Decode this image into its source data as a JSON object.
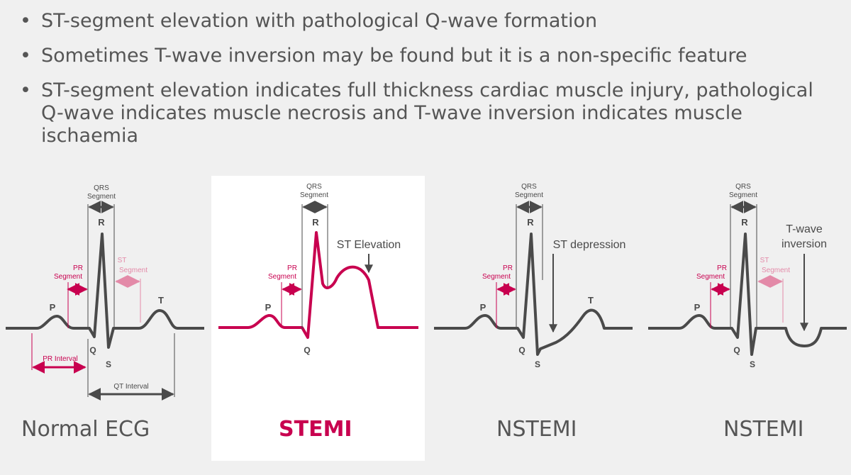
{
  "bullets": [
    "ST-segment elevation with pathological Q-wave formation",
    "Sometimes T-wave inversion may be found but it is a non-specific feature",
    "ST-segment elevation indicates full thickness cardiac muscle injury, pathological Q-wave indicates muscle necrosis and T-wave inversion indicates muscle ischaemia"
  ],
  "bullet_symbol": "•",
  "colors": {
    "trace": "#4a4a4a",
    "accent": "#c8004f",
    "st_light": "#e38aa8",
    "text": "#555555"
  },
  "panels": {
    "normal": {
      "caption": "Normal ECG",
      "qrs_line1": "QRS",
      "qrs_line2": "Segment",
      "r": "R",
      "q": "Q",
      "s": "S",
      "p": "P",
      "t": "T",
      "pr_seg_line1": "PR",
      "pr_seg_line2": "Segment",
      "st_seg_line1": "ST",
      "st_seg_line2": "Segment",
      "pr_interval": "PR Interval",
      "qt_interval": "QT Interval"
    },
    "stemi": {
      "caption": "STEMI",
      "qrs_line1": "QRS",
      "qrs_line2": "Segment",
      "r": "R",
      "q": "Q",
      "p": "P",
      "pr_seg_line1": "PR",
      "pr_seg_line2": "Segment",
      "annotation": "ST Elevation"
    },
    "nstemi_st": {
      "caption": "NSTEMI",
      "qrs_line1": "QRS",
      "qrs_line2": "Segment",
      "r": "R",
      "q": "Q",
      "s": "S",
      "p": "P",
      "t": "T",
      "pr_seg_line1": "PR",
      "pr_seg_line2": "Segment",
      "annotation": "ST depression"
    },
    "nstemi_t": {
      "caption": "NSTEMI",
      "qrs_line1": "QRS",
      "qrs_line2": "Segment",
      "r": "R",
      "q": "Q",
      "s": "S",
      "p": "P",
      "pr_seg_line1": "PR",
      "pr_seg_line2": "Segment",
      "st_seg_line1": "ST",
      "st_seg_line2": "Segment",
      "annotation_line1": "T-wave",
      "annotation_line2": "inversion"
    }
  }
}
